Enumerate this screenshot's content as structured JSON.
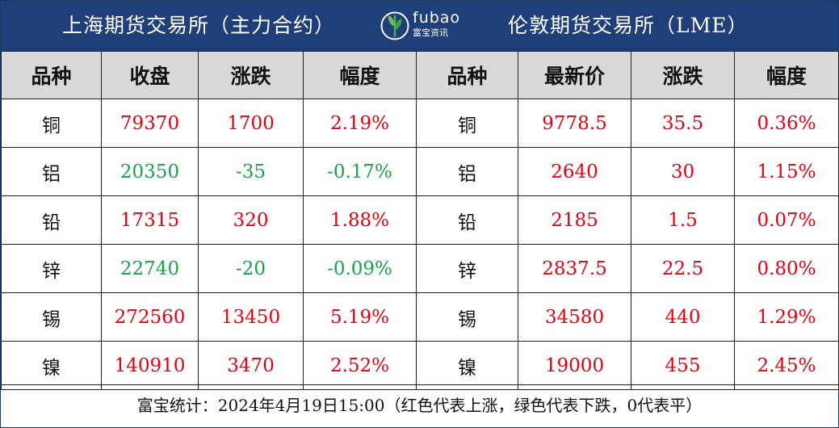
{
  "header": {
    "left_title": "上海期货交易所（主力合约）",
    "right_title": "伦敦期货交易所（LME）",
    "logo": {
      "name": "fubao",
      "sub": "富宝资讯",
      "icon": "fubao-leaf-logo"
    }
  },
  "columns": {
    "shfe": [
      "品种",
      "收盘",
      "涨跌",
      "幅度"
    ],
    "lme": [
      "品种",
      "最新价",
      "涨跌",
      "幅度"
    ]
  },
  "colors": {
    "header_bg": "#1f3f78",
    "column_bg": "#d9d9d9",
    "up": "#e60012",
    "down": "#16a34a"
  },
  "rows": [
    {
      "shfe": {
        "metal": "铜",
        "close": "79370",
        "change": "1700",
        "pct": "2.19%",
        "trend": "up"
      },
      "lme": {
        "metal": "铜",
        "price": "9778.5",
        "change": "35.5",
        "pct": "0.36%",
        "trend": "up"
      }
    },
    {
      "shfe": {
        "metal": "铝",
        "close": "20350",
        "change": "-35",
        "pct": "-0.17%",
        "trend": "down"
      },
      "lme": {
        "metal": "铝",
        "price": "2640",
        "change": "30",
        "pct": "1.15%",
        "trend": "up"
      }
    },
    {
      "shfe": {
        "metal": "铅",
        "close": "17315",
        "change": "320",
        "pct": "1.88%",
        "trend": "up"
      },
      "lme": {
        "metal": "铅",
        "price": "2185",
        "change": "1.5",
        "pct": "0.07%",
        "trend": "up"
      }
    },
    {
      "shfe": {
        "metal": "锌",
        "close": "22740",
        "change": "-20",
        "pct": "-0.09%",
        "trend": "down"
      },
      "lme": {
        "metal": "锌",
        "price": "2837.5",
        "change": "22.5",
        "pct": "0.80%",
        "trend": "up"
      }
    },
    {
      "shfe": {
        "metal": "锡",
        "close": "272560",
        "change": "13450",
        "pct": "5.19%",
        "trend": "up"
      },
      "lme": {
        "metal": "锡",
        "price": "34580",
        "change": "440",
        "pct": "1.29%",
        "trend": "up"
      }
    },
    {
      "shfe": {
        "metal": "镍",
        "close": "140910",
        "change": "3470",
        "pct": "2.52%",
        "trend": "up"
      },
      "lme": {
        "metal": "镍",
        "price": "19000",
        "change": "455",
        "pct": "2.45%",
        "trend": "up"
      }
    }
  ],
  "footer": {
    "text": "富宝统计：2024年4月19日15:00（红色代表上涨，绿色代表下跌，0代表平）"
  }
}
